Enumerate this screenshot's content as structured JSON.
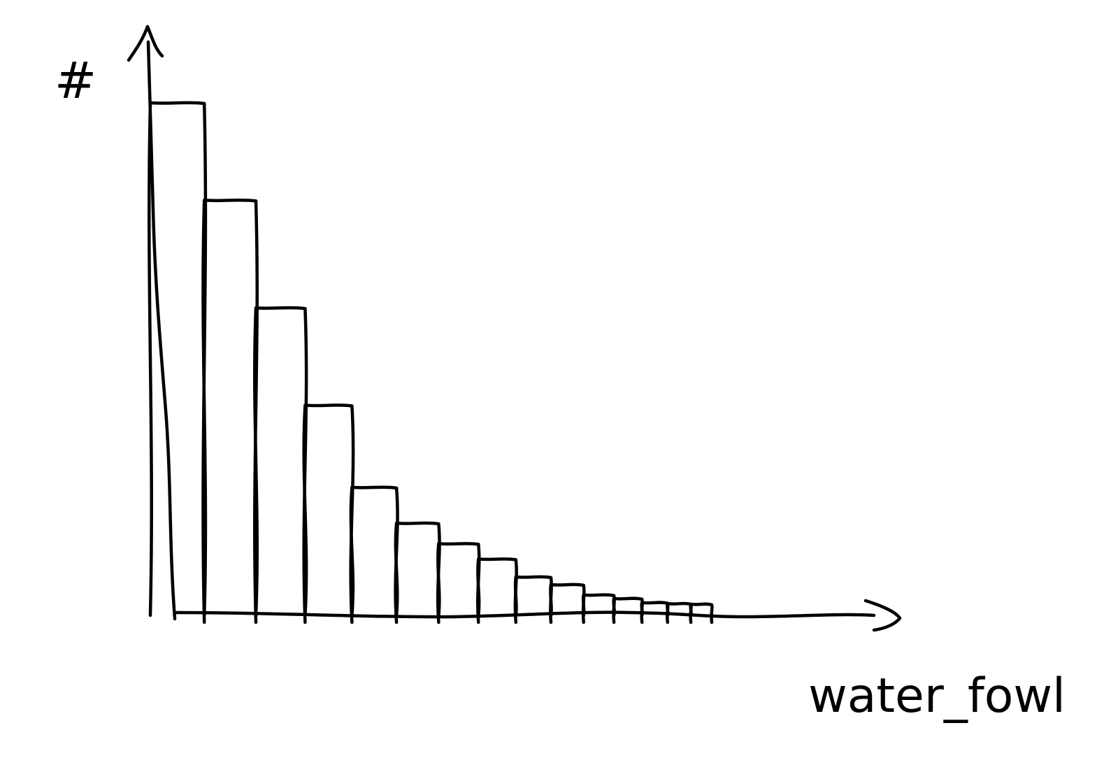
{
  "chart_data": {
    "type": "bar",
    "style": "hand-drawn",
    "ylabel": "#",
    "xlabel": "water_fowl",
    "grid": false,
    "legend": "none",
    "categories": [
      "",
      "",
      "",
      "",
      "",
      "",
      "",
      "",
      "",
      "",
      "",
      "",
      "",
      "",
      ""
    ],
    "values": [
      100,
      81,
      60,
      41,
      25,
      18,
      14,
      11,
      7.5,
      6,
      4,
      3.3,
      2.5,
      2.3,
      2.2
    ],
    "ylim": [
      0,
      100
    ],
    "colors": {
      "ink": "#000000",
      "background": "#ffffff"
    }
  }
}
